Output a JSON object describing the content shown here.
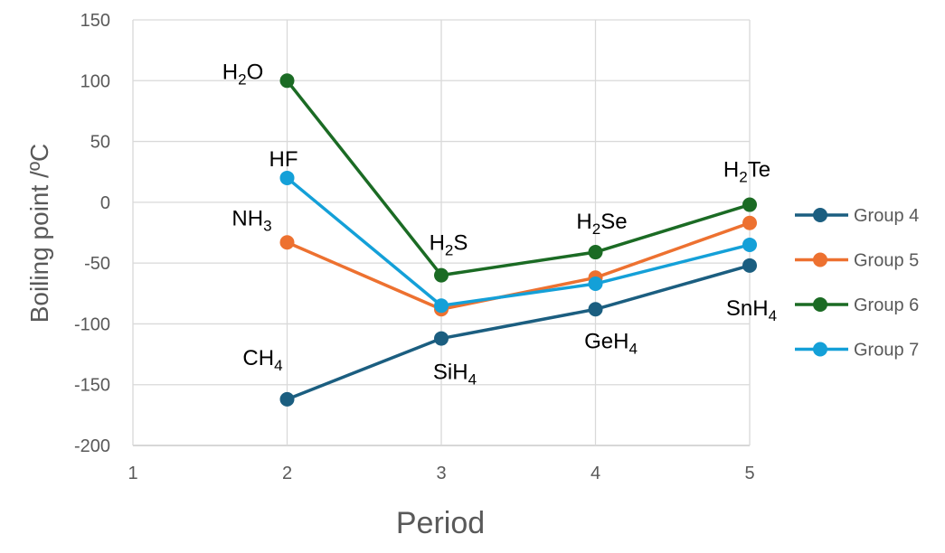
{
  "chart_data": {
    "type": "line",
    "title": "",
    "xlabel": "Period",
    "ylabel": "Boiling point /ºC",
    "xlim": [
      1,
      5
    ],
    "ylim": [
      -200,
      150
    ],
    "xticks": [
      1,
      2,
      3,
      4,
      5
    ],
    "yticks": [
      -200,
      -150,
      -100,
      -50,
      0,
      50,
      100,
      150
    ],
    "grid": true,
    "legend_position": "right",
    "x": [
      2,
      3,
      4,
      5
    ],
    "series": [
      {
        "name": "Group 4",
        "color": "#1b5e80",
        "values": [
          -162,
          -112,
          -88,
          -52
        ],
        "labels": [
          "CH4",
          "SiH4",
          "GeH4",
          "SnH4"
        ]
      },
      {
        "name": "Group 5",
        "color": "#ed7130",
        "values": [
          -33,
          -88,
          -62,
          -17
        ],
        "labels": [
          "NH3",
          "",
          "",
          ""
        ]
      },
      {
        "name": "Group 6",
        "color": "#1b6b24",
        "values": [
          100,
          -60,
          -41,
          -2
        ],
        "labels": [
          "H2O",
          "H2S",
          "H2Se",
          "H2Te"
        ]
      },
      {
        "name": "Group 7",
        "color": "#14a0d8",
        "values": [
          20,
          -85,
          -67,
          -35
        ],
        "labels": [
          "HF",
          "",
          "",
          ""
        ]
      }
    ]
  }
}
